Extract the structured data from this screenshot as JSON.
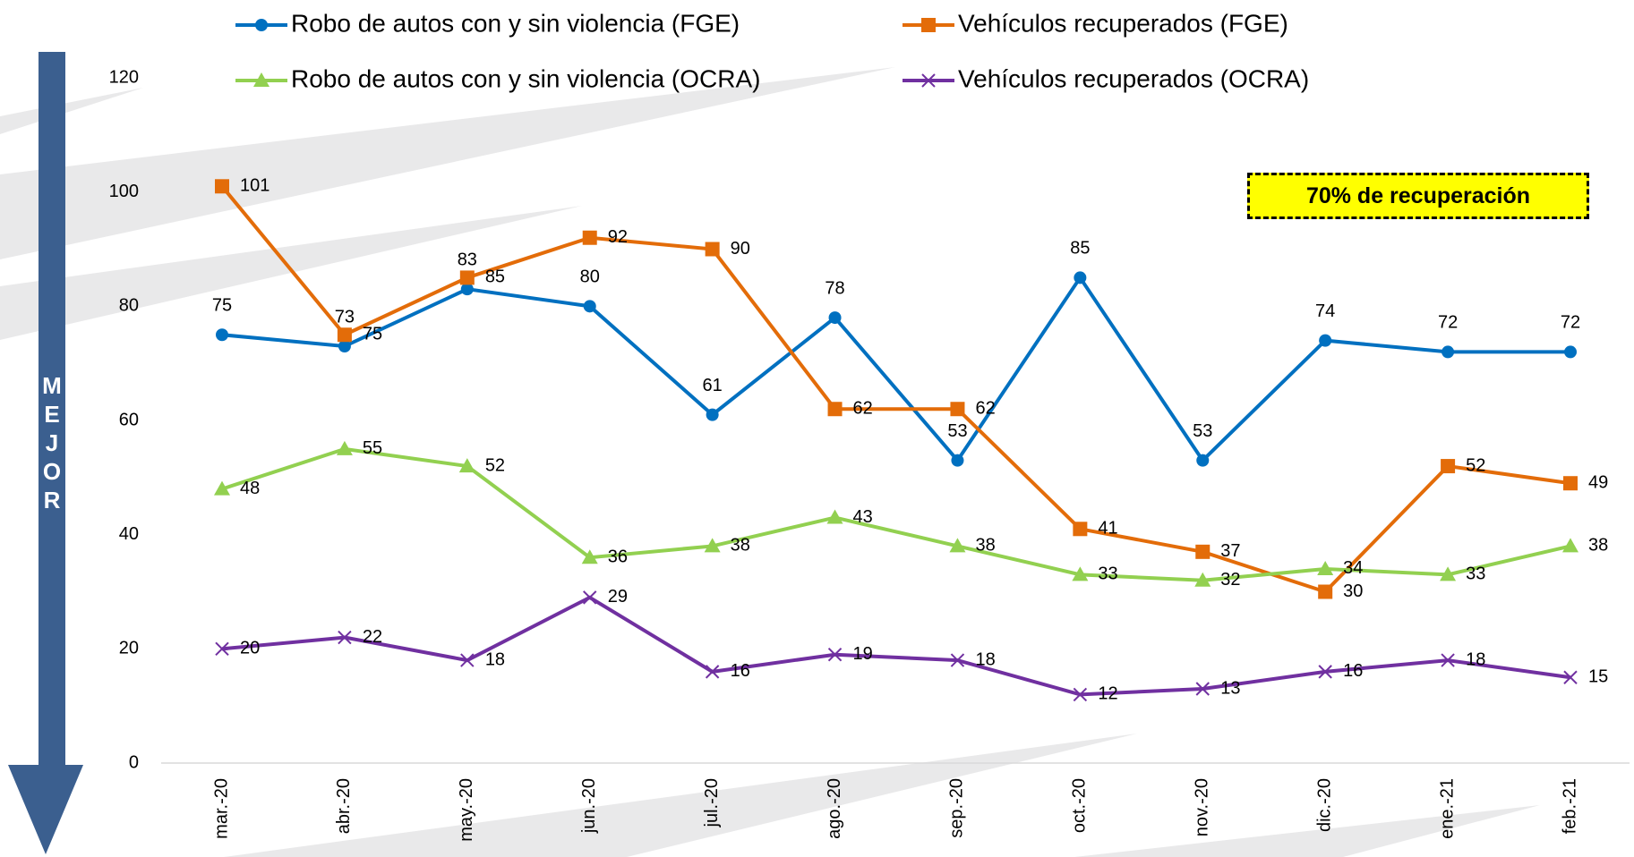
{
  "chart_data": {
    "type": "line",
    "categories": [
      "mar.-20",
      "abr.-20",
      "may.-20",
      "jun.-20",
      "jul.-20",
      "ago.-20",
      "sep.-20",
      "oct.-20",
      "nov.-20",
      "dic.-20",
      "ene.-21",
      "feb.-21"
    ],
    "series": [
      {
        "name": "Robo de autos con y sin violencia (FGE)",
        "color": "#0070c0",
        "marker": "circle",
        "values": [
          75,
          73,
          83,
          80,
          61,
          78,
          53,
          85,
          53,
          74,
          72,
          72
        ]
      },
      {
        "name": "Vehículos recuperados (FGE)",
        "color": "#e36c09",
        "marker": "square",
        "values": [
          101,
          75,
          85,
          92,
          90,
          62,
          62,
          41,
          37,
          30,
          52,
          49
        ]
      },
      {
        "name": "Robo de autos con y sin violencia (OCRA)",
        "color": "#92d050",
        "marker": "triangle",
        "values": [
          48,
          55,
          52,
          36,
          38,
          43,
          38,
          33,
          32,
          34,
          33,
          38
        ]
      },
      {
        "name": "Vehículos recuperados (OCRA)",
        "color": "#7030a0",
        "marker": "x",
        "values": [
          20,
          22,
          18,
          29,
          16,
          19,
          18,
          12,
          13,
          16,
          18,
          15
        ]
      }
    ],
    "ylim": [
      0,
      120
    ],
    "yticks": [
      0,
      20,
      40,
      60,
      80,
      100,
      120
    ],
    "grid": false,
    "annotation": "70% de recuperación",
    "side_label": "MEJOR"
  }
}
